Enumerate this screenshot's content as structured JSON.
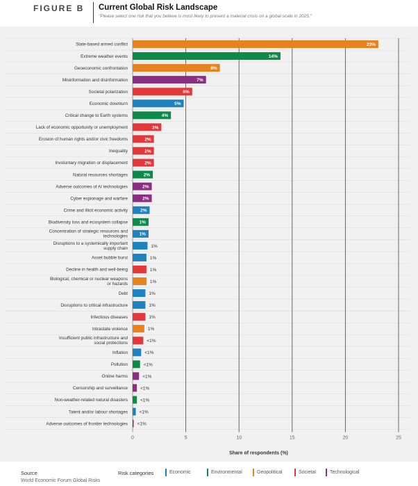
{
  "figure_label": "FIGURE B",
  "title": "Current Global Risk Landscape",
  "subtitle": "\"Please select one risk that you believe is most likely to present a material crisis on a global scale in 2025.\"",
  "footer": {
    "source_label": "Source",
    "source_text": "World Economic Forum Global Risks",
    "categories_label": "Risk categories"
  },
  "colors": {
    "Economic": "#1f82c0",
    "Environmental": "#0d8a4a",
    "Geopolitical": "#e8821e",
    "Societal": "#e2383a",
    "Technological": "#8b2d82"
  },
  "chart_data": {
    "type": "bar",
    "orientation": "horizontal",
    "xlabel": "Share of respondents (%)",
    "xlim": [
      0,
      25
    ],
    "xticks": [
      "0",
      "5",
      "10",
      "15",
      "20",
      "25"
    ],
    "grid": true,
    "legend_position": "bottom",
    "categories": [
      "State-based armed conflict",
      "Extreme weather events",
      "Geoeconomic confrontation",
      "Misinformation and disinformation",
      "Societal polarization",
      "Economic downturn",
      "Critical change to Earth systems",
      "Lack of economic opportunity or unemployment",
      "Erosion of human rights and/or civic freedoms",
      "Inequality",
      "Involuntary migration or displacement",
      "Natural resources shortages",
      "Adverse outcomes of AI technologies",
      "Cyber espionage and warfare",
      "Crime and illicit economic activity",
      "Biodiversity loss and ecosystem collapse",
      "Concentration of strategic resources and technologies",
      "Disruptions to a systemically important supply chain",
      "Asset bubble burst",
      "Decline in health and well-being",
      "Biological, chemical or nuclear weapons or hazards",
      "Debt",
      "Disruptions to critical infrastructure",
      "Infectious diseases",
      "Intrastate violence",
      "Insufficient public infrastructure and social protections",
      "Inflation",
      "Pollution",
      "Online harms",
      "Censorship and surveillance",
      "Non-weather-related natural disasters",
      "Talent and/or labour shortages",
      "Adverse outcomes of frontier technologies"
    ],
    "values": [
      23.1,
      13.9,
      8.2,
      6.9,
      5.6,
      4.8,
      3.6,
      2.7,
      2.0,
      2.0,
      2.0,
      1.9,
      1.8,
      1.8,
      1.6,
      1.5,
      1.5,
      1.4,
      1.3,
      1.3,
      1.3,
      1.2,
      1.2,
      1.2,
      1.1,
      1.0,
      0.8,
      0.7,
      0.6,
      0.4,
      0.4,
      0.3,
      0.1
    ],
    "value_labels": [
      "23%",
      "14%",
      "8%",
      "7%",
      "6%",
      "5%",
      "4%",
      "3%",
      "2%",
      "2%",
      "2%",
      "2%",
      "2%",
      "2%",
      "2%",
      "1%",
      "1%",
      "1%",
      "1%",
      "1%",
      "1%",
      "1%",
      "1%",
      "1%",
      "1%",
      "<1%",
      "<1%",
      "<1%",
      "<1%",
      "<1%",
      "<1%",
      "<1%",
      "<1%"
    ],
    "risk_categories": [
      "Geopolitical",
      "Environmental",
      "Geopolitical",
      "Technological",
      "Societal",
      "Economic",
      "Environmental",
      "Societal",
      "Societal",
      "Societal",
      "Societal",
      "Environmental",
      "Technological",
      "Technological",
      "Economic",
      "Environmental",
      "Economic",
      "Economic",
      "Economic",
      "Societal",
      "Geopolitical",
      "Economic",
      "Economic",
      "Societal",
      "Geopolitical",
      "Societal",
      "Economic",
      "Environmental",
      "Technological",
      "Technological",
      "Environmental",
      "Economic",
      "Technological"
    ],
    "legend": [
      "Economic",
      "Environmental",
      "Geopolitical",
      "Societal",
      "Technological"
    ]
  }
}
